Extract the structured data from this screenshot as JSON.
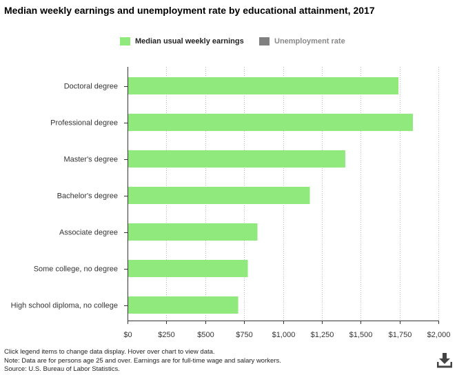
{
  "title": "Median weekly earnings and unemployment rate by educational attainment, 2017",
  "legend": {
    "earnings_label": "Median usual weekly earnings",
    "unemployment_label": "Unemployment rate"
  },
  "colors": {
    "earnings": "#90e97c",
    "unemployment": "#808080",
    "axis": "#333333",
    "grid": "#bbbbbb"
  },
  "chart_data": {
    "type": "bar",
    "orientation": "horizontal",
    "title": "Median weekly earnings and unemployment rate by educational attainment, 2017",
    "categories": [
      "Doctoral degree",
      "Professional degree",
      "Master's degree",
      "Bachelor's degree",
      "Associate degree",
      "Some college, no degree",
      "High school diploma, no college"
    ],
    "series": [
      {
        "name": "Median usual weekly earnings",
        "values": [
          1743,
          1836,
          1401,
          1173,
          836,
          774,
          712
        ]
      }
    ],
    "xlim": [
      0,
      2000
    ],
    "xticks": [
      0,
      250,
      500,
      750,
      1000,
      1250,
      1500,
      1750,
      2000
    ],
    "xtick_labels": [
      "$0",
      "$250",
      "$500",
      "$750",
      "$1,000",
      "$1,250",
      "$1,500",
      "$1,750",
      "$2,000"
    ],
    "grid": "vertical dotted",
    "legend_position": "top"
  },
  "notes": [
    "Click legend items to change data display. Hover over chart to view data.",
    "Note: Data are for persons age 25 and over. Earnings are for full-time wage and salary workers.",
    "Source: U.S. Bureau of Labor Statistics."
  ],
  "icons": {
    "download": "download-icon"
  }
}
